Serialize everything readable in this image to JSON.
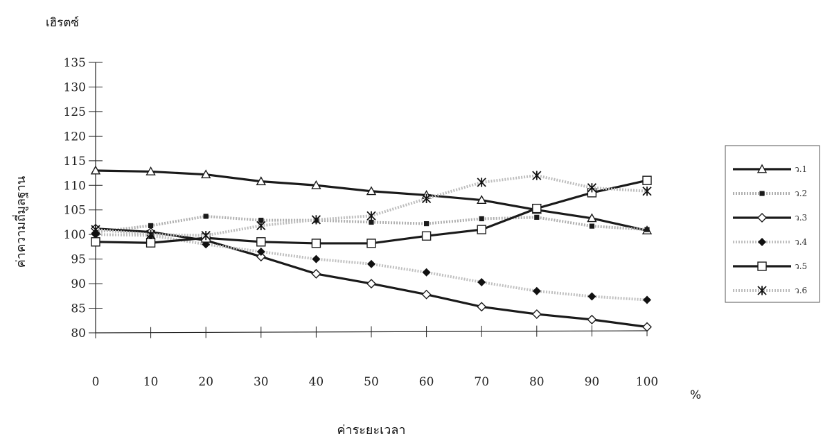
{
  "chart_data": {
    "type": "line",
    "title": "",
    "unit_label": "เฮิรตซ์",
    "xlabel": "ค่าระยะเวลา",
    "ylabel": "ค่าความถี่มูลฐาน",
    "x_unit": "%",
    "x": [
      0,
      10,
      20,
      30,
      40,
      50,
      60,
      70,
      80,
      90,
      100
    ],
    "xticks": [
      "0",
      "10",
      "20",
      "30",
      "40",
      "50",
      "60",
      "70",
      "80",
      "90",
      "100"
    ],
    "yticks": [
      "80",
      "85",
      "90",
      "95",
      "100",
      "105",
      "110",
      "115",
      "120",
      "125",
      "130",
      "135"
    ],
    "ylim": [
      80,
      135
    ],
    "xlim": [
      0,
      100
    ],
    "grid": false,
    "legend_position": "right",
    "series": [
      {
        "name": "ว.1",
        "color": "#1a1a1a",
        "marker": "triangle-open",
        "style": "solid",
        "values": [
          113,
          112.8,
          112.2,
          110.8,
          110,
          108.8,
          108,
          107,
          105,
          103.3,
          100.8
        ]
      },
      {
        "name": "ว.2",
        "color": "#b0b0b0",
        "marker": "square-filled",
        "style": "dotted",
        "values": [
          100.5,
          101.8,
          103.7,
          102.9,
          102.9,
          102.5,
          102.2,
          103.2,
          103.5,
          101.7,
          101
        ]
      },
      {
        "name": "ว.3",
        "color": "#1a1a1a",
        "marker": "diamond-open",
        "style": "solid",
        "values": [
          101.2,
          100.5,
          98.8,
          95.5,
          92,
          90,
          87.8,
          85.3,
          83.8,
          82.7,
          81.2
        ]
      },
      {
        "name": "ว.4",
        "color": "#c0c0c0",
        "marker": "diamond-filled",
        "style": "dotted",
        "values": [
          100,
          99.8,
          98,
          96.5,
          95,
          94,
          92.3,
          90.3,
          88.5,
          87.4,
          86.7
        ]
      },
      {
        "name": "ว.5",
        "color": "#1a1a1a",
        "marker": "square-open",
        "style": "solid",
        "values": [
          98.5,
          98.3,
          99.3,
          98.5,
          98.2,
          98.2,
          99.7,
          101,
          105.3,
          108.5,
          111
        ]
      },
      {
        "name": "ว.6",
        "color": "#bdbdbd",
        "marker": "star",
        "style": "dotted",
        "values": [
          101,
          100,
          99.8,
          101.8,
          103,
          103.8,
          107.3,
          110.6,
          112,
          109.5,
          108.8
        ]
      }
    ]
  }
}
